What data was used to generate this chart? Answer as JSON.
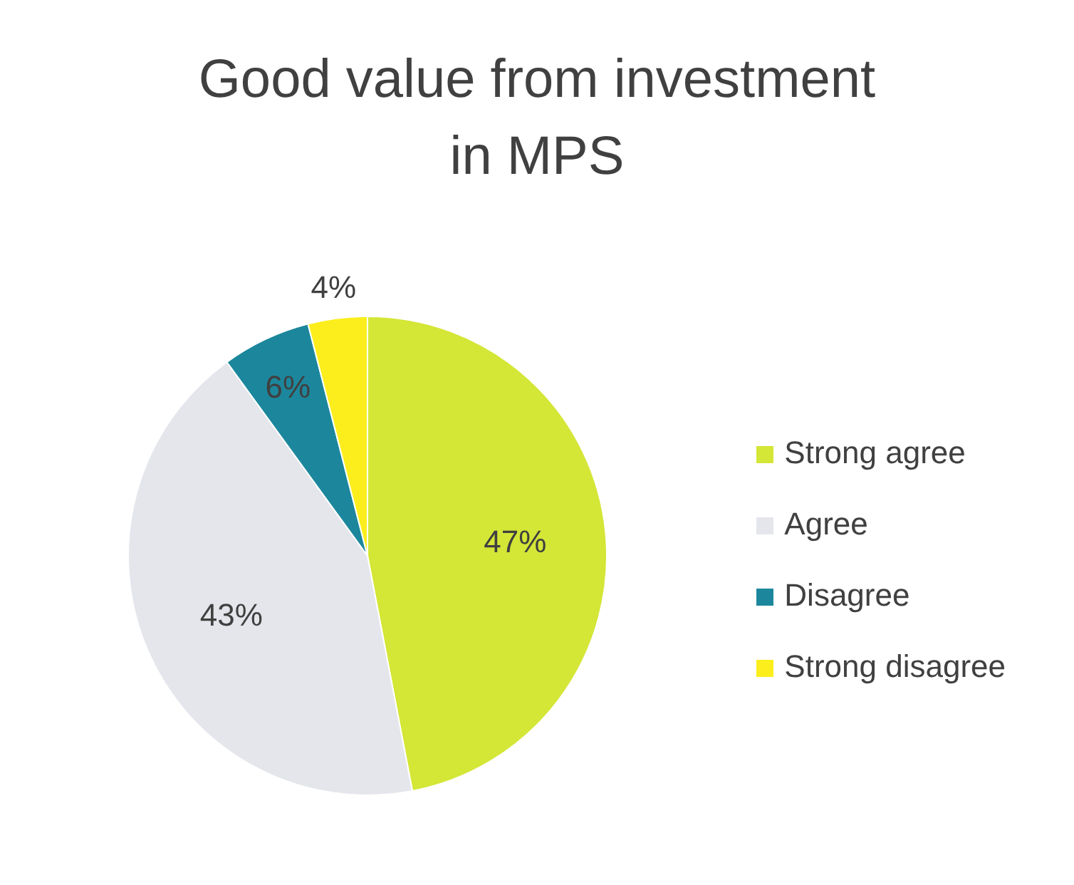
{
  "chart_data": {
    "type": "pie",
    "title": "Good value from investment in MPS",
    "categories": [
      "Strong agree",
      "Agree",
      "Disagree",
      "Strong disagree"
    ],
    "values": [
      47,
      43,
      6,
      4
    ],
    "colors": [
      "#d4e636",
      "#e4e6ec",
      "#1c879c",
      "#fbee1c"
    ],
    "value_labels": [
      "47%",
      "43%",
      "6%",
      "4%"
    ],
    "legend": "right"
  }
}
